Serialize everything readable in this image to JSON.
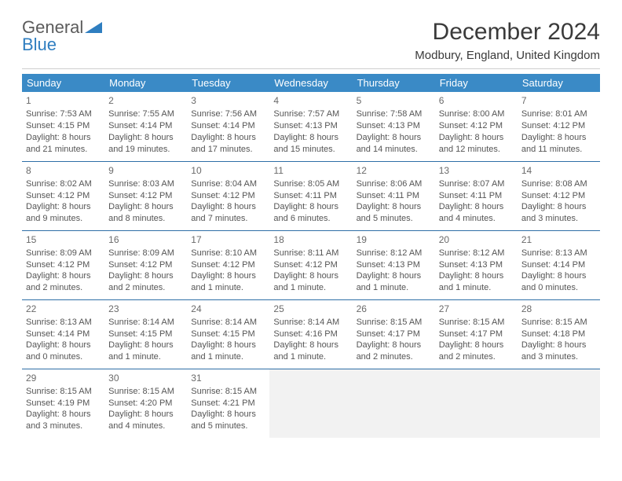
{
  "logo": {
    "line1": "General",
    "line2": "Blue"
  },
  "header": {
    "title": "December 2024",
    "location": "Modbury, England, United Kingdom"
  },
  "colors": {
    "header_bg": "#3a8ac6",
    "header_text": "#ffffff",
    "week_border": "#2f6fa6",
    "empty_bg": "#f2f2f2",
    "logo_gray": "#5b5b5b",
    "logo_blue": "#2f7ec0"
  },
  "dayNames": [
    "Sunday",
    "Monday",
    "Tuesday",
    "Wednesday",
    "Thursday",
    "Friday",
    "Saturday"
  ],
  "labels": {
    "sunrise": "Sunrise: ",
    "sunset": "Sunset: ",
    "daylight": "Daylight: "
  },
  "weeks": [
    [
      {
        "n": 1,
        "sr": "7:53 AM",
        "ss": "4:15 PM",
        "dl1": "8 hours",
        "dl2": "and 21 minutes."
      },
      {
        "n": 2,
        "sr": "7:55 AM",
        "ss": "4:14 PM",
        "dl1": "8 hours",
        "dl2": "and 19 minutes."
      },
      {
        "n": 3,
        "sr": "7:56 AM",
        "ss": "4:14 PM",
        "dl1": "8 hours",
        "dl2": "and 17 minutes."
      },
      {
        "n": 4,
        "sr": "7:57 AM",
        "ss": "4:13 PM",
        "dl1": "8 hours",
        "dl2": "and 15 minutes."
      },
      {
        "n": 5,
        "sr": "7:58 AM",
        "ss": "4:13 PM",
        "dl1": "8 hours",
        "dl2": "and 14 minutes."
      },
      {
        "n": 6,
        "sr": "8:00 AM",
        "ss": "4:12 PM",
        "dl1": "8 hours",
        "dl2": "and 12 minutes."
      },
      {
        "n": 7,
        "sr": "8:01 AM",
        "ss": "4:12 PM",
        "dl1": "8 hours",
        "dl2": "and 11 minutes."
      }
    ],
    [
      {
        "n": 8,
        "sr": "8:02 AM",
        "ss": "4:12 PM",
        "dl1": "8 hours",
        "dl2": "and 9 minutes."
      },
      {
        "n": 9,
        "sr": "8:03 AM",
        "ss": "4:12 PM",
        "dl1": "8 hours",
        "dl2": "and 8 minutes."
      },
      {
        "n": 10,
        "sr": "8:04 AM",
        "ss": "4:12 PM",
        "dl1": "8 hours",
        "dl2": "and 7 minutes."
      },
      {
        "n": 11,
        "sr": "8:05 AM",
        "ss": "4:11 PM",
        "dl1": "8 hours",
        "dl2": "and 6 minutes."
      },
      {
        "n": 12,
        "sr": "8:06 AM",
        "ss": "4:11 PM",
        "dl1": "8 hours",
        "dl2": "and 5 minutes."
      },
      {
        "n": 13,
        "sr": "8:07 AM",
        "ss": "4:11 PM",
        "dl1": "8 hours",
        "dl2": "and 4 minutes."
      },
      {
        "n": 14,
        "sr": "8:08 AM",
        "ss": "4:12 PM",
        "dl1": "8 hours",
        "dl2": "and 3 minutes."
      }
    ],
    [
      {
        "n": 15,
        "sr": "8:09 AM",
        "ss": "4:12 PM",
        "dl1": "8 hours",
        "dl2": "and 2 minutes."
      },
      {
        "n": 16,
        "sr": "8:09 AM",
        "ss": "4:12 PM",
        "dl1": "8 hours",
        "dl2": "and 2 minutes."
      },
      {
        "n": 17,
        "sr": "8:10 AM",
        "ss": "4:12 PM",
        "dl1": "8 hours",
        "dl2": "and 1 minute."
      },
      {
        "n": 18,
        "sr": "8:11 AM",
        "ss": "4:12 PM",
        "dl1": "8 hours",
        "dl2": "and 1 minute."
      },
      {
        "n": 19,
        "sr": "8:12 AM",
        "ss": "4:13 PM",
        "dl1": "8 hours",
        "dl2": "and 1 minute."
      },
      {
        "n": 20,
        "sr": "8:12 AM",
        "ss": "4:13 PM",
        "dl1": "8 hours",
        "dl2": "and 1 minute."
      },
      {
        "n": 21,
        "sr": "8:13 AM",
        "ss": "4:14 PM",
        "dl1": "8 hours",
        "dl2": "and 0 minutes."
      }
    ],
    [
      {
        "n": 22,
        "sr": "8:13 AM",
        "ss": "4:14 PM",
        "dl1": "8 hours",
        "dl2": "and 0 minutes."
      },
      {
        "n": 23,
        "sr": "8:14 AM",
        "ss": "4:15 PM",
        "dl1": "8 hours",
        "dl2": "and 1 minute."
      },
      {
        "n": 24,
        "sr": "8:14 AM",
        "ss": "4:15 PM",
        "dl1": "8 hours",
        "dl2": "and 1 minute."
      },
      {
        "n": 25,
        "sr": "8:14 AM",
        "ss": "4:16 PM",
        "dl1": "8 hours",
        "dl2": "and 1 minute."
      },
      {
        "n": 26,
        "sr": "8:15 AM",
        "ss": "4:17 PM",
        "dl1": "8 hours",
        "dl2": "and 2 minutes."
      },
      {
        "n": 27,
        "sr": "8:15 AM",
        "ss": "4:17 PM",
        "dl1": "8 hours",
        "dl2": "and 2 minutes."
      },
      {
        "n": 28,
        "sr": "8:15 AM",
        "ss": "4:18 PM",
        "dl1": "8 hours",
        "dl2": "and 3 minutes."
      }
    ],
    [
      {
        "n": 29,
        "sr": "8:15 AM",
        "ss": "4:19 PM",
        "dl1": "8 hours",
        "dl2": "and 3 minutes."
      },
      {
        "n": 30,
        "sr": "8:15 AM",
        "ss": "4:20 PM",
        "dl1": "8 hours",
        "dl2": "and 4 minutes."
      },
      {
        "n": 31,
        "sr": "8:15 AM",
        "ss": "4:21 PM",
        "dl1": "8 hours",
        "dl2": "and 5 minutes."
      },
      null,
      null,
      null,
      null
    ]
  ]
}
